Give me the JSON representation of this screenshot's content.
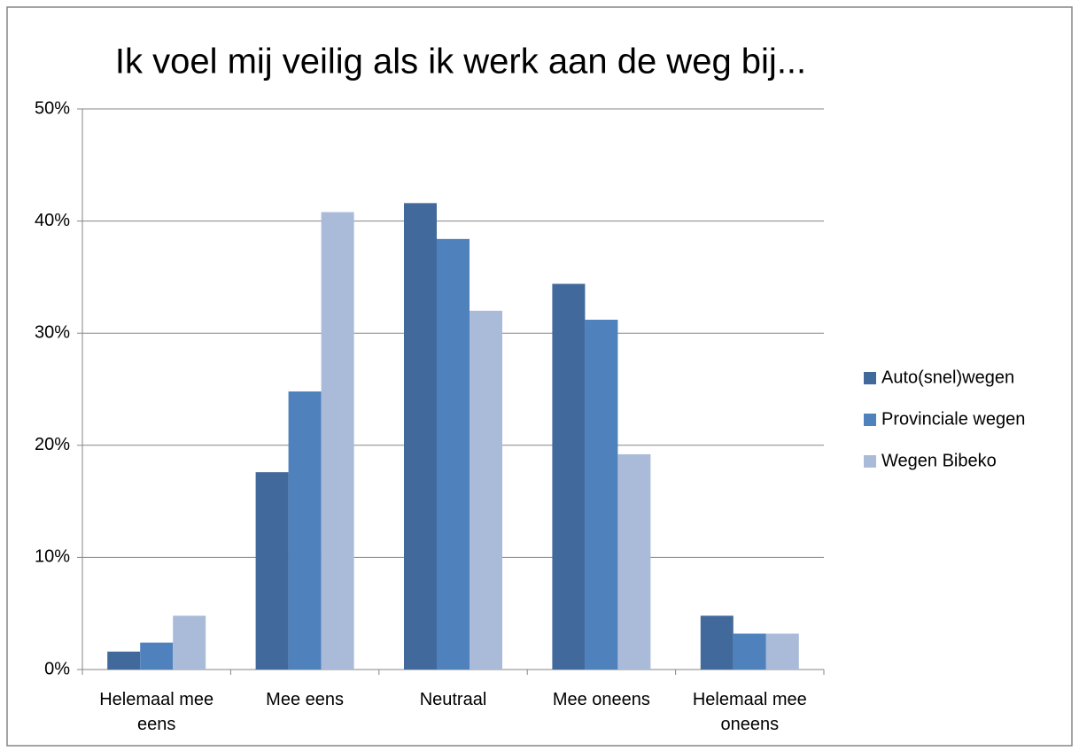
{
  "chart_data": {
    "type": "bar",
    "title": "Ik voel mij veilig als ik werk aan de weg bij...",
    "categories": [
      "Helemaal mee eens",
      "Mee eens",
      "Neutraal",
      "Mee oneens",
      "Helemaal mee oneens"
    ],
    "series": [
      {
        "name": "Auto(snel)wegen",
        "color": "#41699c",
        "values": [
          1.6,
          17.6,
          41.6,
          34.4,
          4.8
        ]
      },
      {
        "name": "Provinciale wegen",
        "color": "#4f81bd",
        "values": [
          2.4,
          24.8,
          38.4,
          31.2,
          3.2
        ]
      },
      {
        "name": "Wegen Bibeko",
        "color": "#aabbd9",
        "values": [
          4.8,
          40.8,
          32.0,
          19.2,
          3.2
        ]
      }
    ],
    "ylim": [
      0,
      50
    ],
    "yticks": [
      {
        "value": 0,
        "label": "0%"
      },
      {
        "value": 10,
        "label": "10%"
      },
      {
        "value": 20,
        "label": "20%"
      },
      {
        "value": 30,
        "label": "30%"
      },
      {
        "value": 40,
        "label": "40%"
      },
      {
        "value": 50,
        "label": "50%"
      }
    ],
    "grid": true,
    "legend": "right"
  }
}
